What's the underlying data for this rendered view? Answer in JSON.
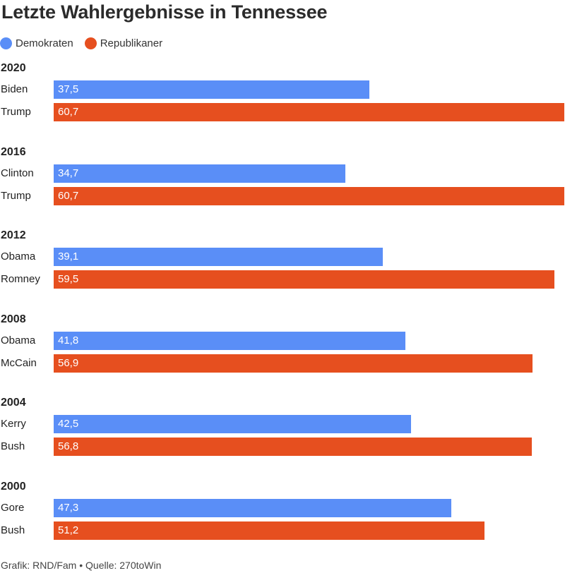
{
  "chart_data": {
    "type": "bar",
    "orientation": "horizontal",
    "title": "Letzte Wahlergebnisse in Tennessee",
    "legend": {
      "position": "top-left",
      "entries": [
        {
          "name": "Demokraten",
          "color": "#5a8ef7"
        },
        {
          "name": "Republikaner",
          "color": "#e64f1f"
        }
      ]
    },
    "xlim": [
      0,
      60.7
    ],
    "grid": false,
    "groups": [
      {
        "year": "2020",
        "bars": [
          {
            "candidate": "Biden",
            "party": "Demokraten",
            "value": 37.5,
            "label": "37,5"
          },
          {
            "candidate": "Trump",
            "party": "Republikaner",
            "value": 60.7,
            "label": "60,7"
          }
        ]
      },
      {
        "year": "2016",
        "bars": [
          {
            "candidate": "Clinton",
            "party": "Demokraten",
            "value": 34.7,
            "label": "34,7"
          },
          {
            "candidate": "Trump",
            "party": "Republikaner",
            "value": 60.7,
            "label": "60,7"
          }
        ]
      },
      {
        "year": "2012",
        "bars": [
          {
            "candidate": "Obama",
            "party": "Demokraten",
            "value": 39.1,
            "label": "39,1"
          },
          {
            "candidate": "Romney",
            "party": "Republikaner",
            "value": 59.5,
            "label": "59,5"
          }
        ]
      },
      {
        "year": "2008",
        "bars": [
          {
            "candidate": "Obama",
            "party": "Demokraten",
            "value": 41.8,
            "label": "41,8"
          },
          {
            "candidate": "McCain",
            "party": "Republikaner",
            "value": 56.9,
            "label": "56,9"
          }
        ]
      },
      {
        "year": "2004",
        "bars": [
          {
            "candidate": "Kerry",
            "party": "Demokraten",
            "value": 42.5,
            "label": "42,5"
          },
          {
            "candidate": "Bush",
            "party": "Republikaner",
            "value": 56.8,
            "label": "56,8"
          }
        ]
      },
      {
        "year": "2000",
        "bars": [
          {
            "candidate": "Gore",
            "party": "Demokraten",
            "value": 47.3,
            "label": "47,3"
          },
          {
            "candidate": "Bush",
            "party": "Republikaner",
            "value": 51.2,
            "label": "51,2"
          }
        ]
      }
    ],
    "source": "Grafik: RND/Fam • Quelle: 270toWin"
  }
}
